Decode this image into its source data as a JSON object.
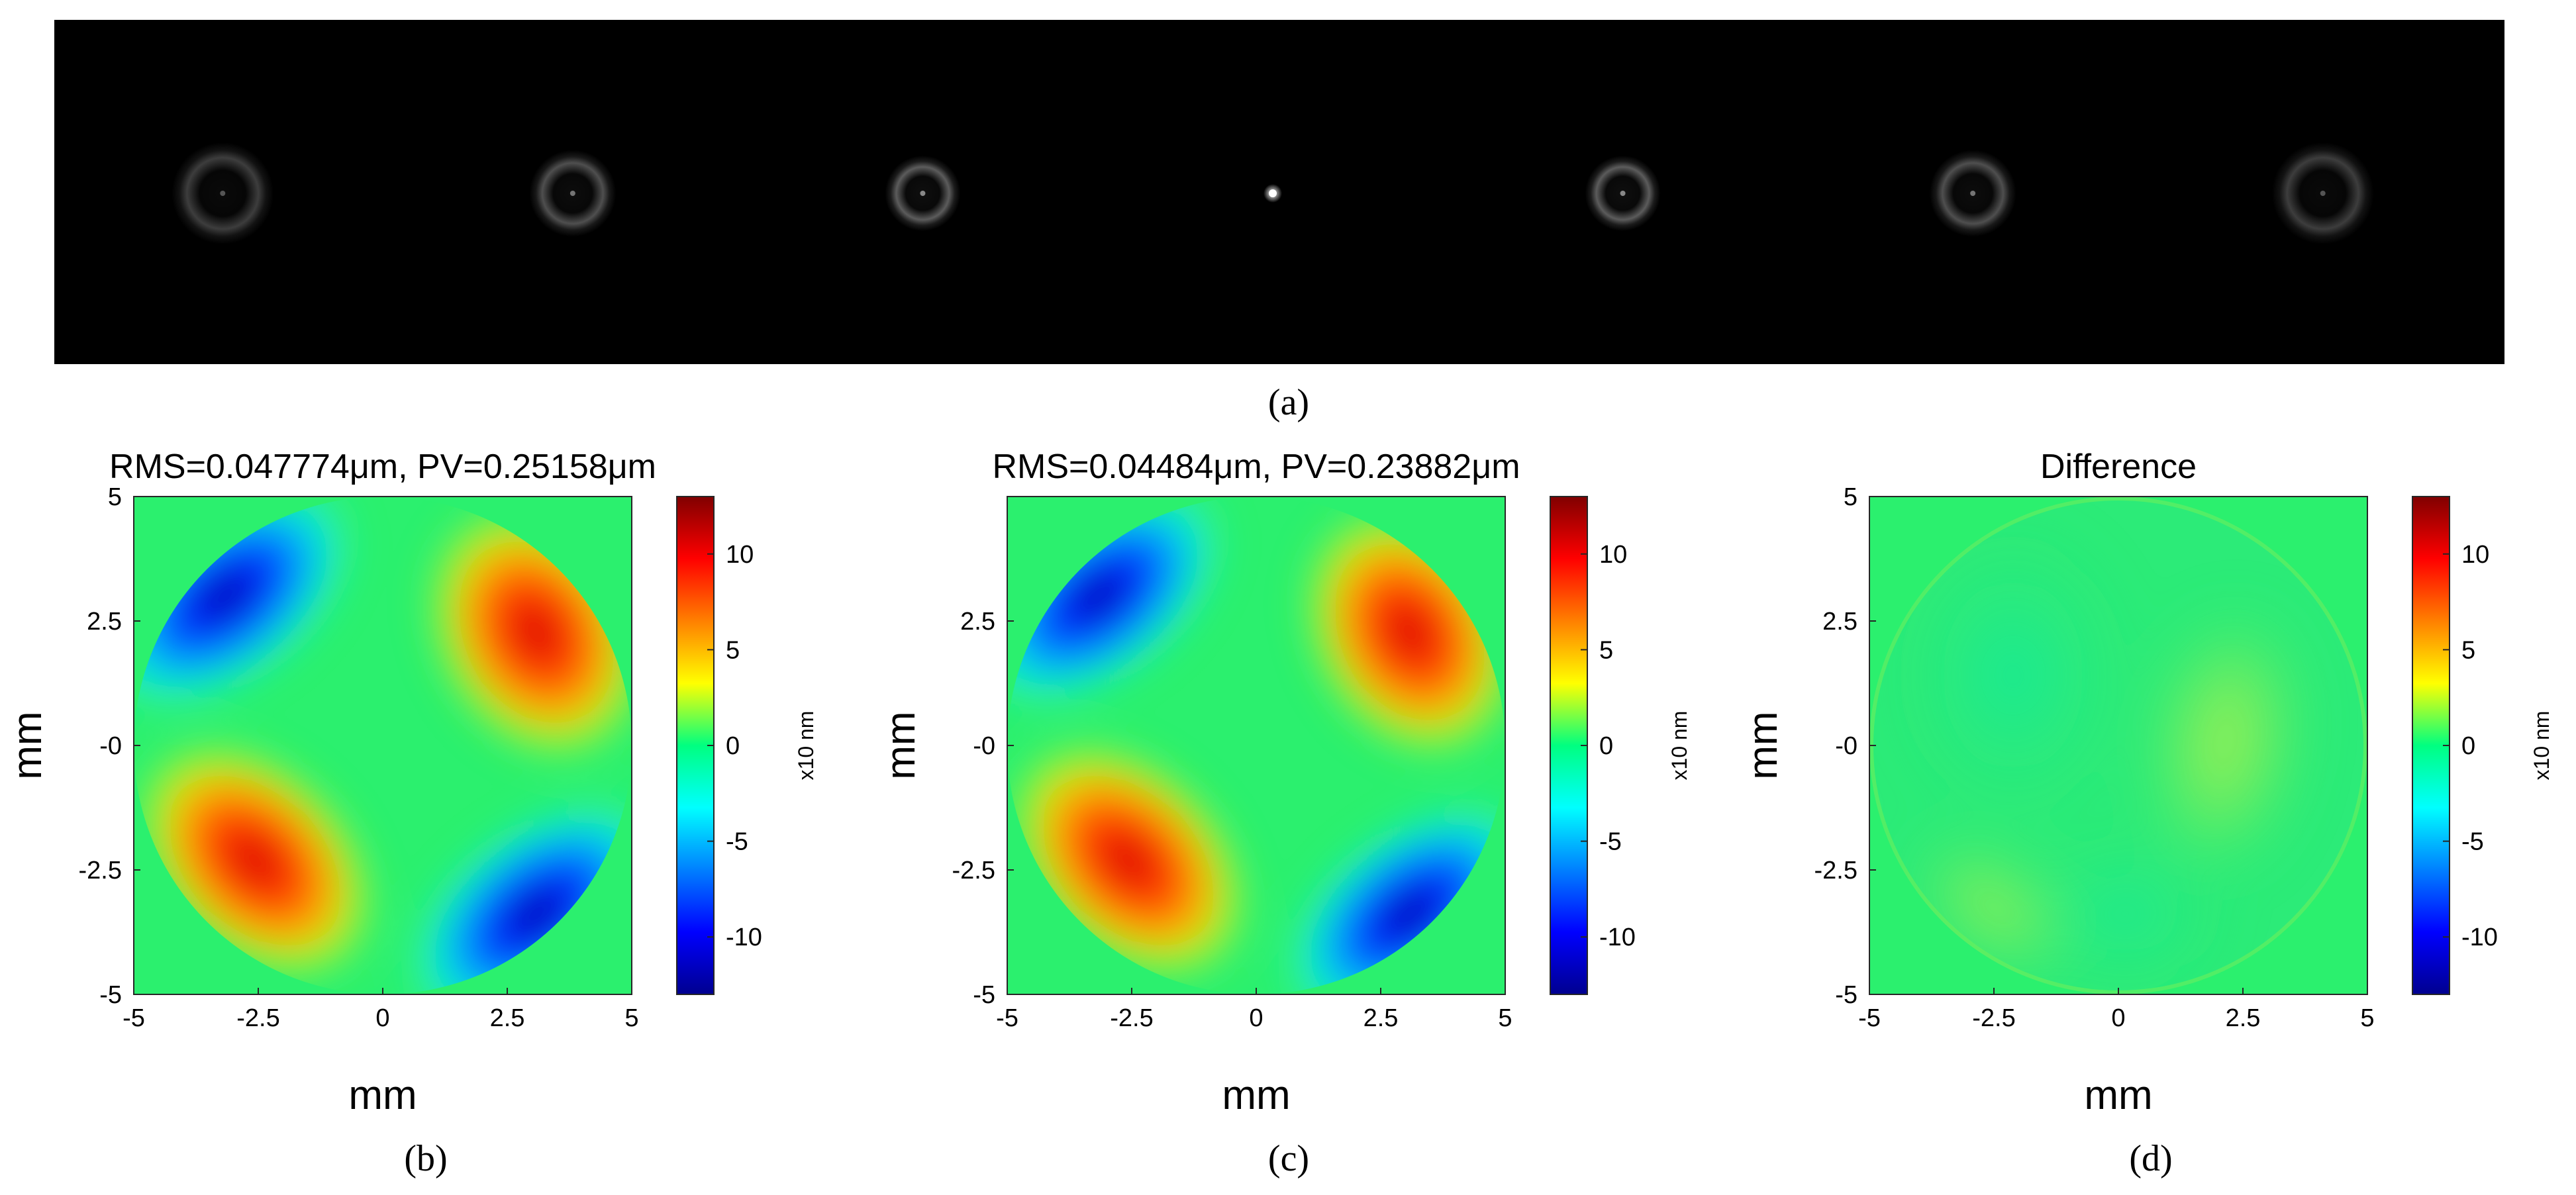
{
  "figure": {
    "panel_labels": [
      "(a)",
      "(b)",
      "(c)",
      "(d)"
    ],
    "panel_a": {
      "type": "focal-spot image series",
      "background": "#000000",
      "spot_count": 7,
      "spot_intensity": [
        0.22,
        0.45,
        0.62,
        1.0,
        0.62,
        0.45,
        0.22
      ]
    },
    "colormap": "jet",
    "colorbar_label": "x10 nm",
    "colorbar_ticks": [
      "10",
      "5",
      "0",
      "-5",
      "-10"
    ],
    "panels": [
      {
        "id": "b",
        "title": "RMS=0.047774μm, PV=0.25158μm",
        "xlabel": "mm",
        "ylabel": "mm",
        "xticks": [
          "-5",
          "-2.5",
          "0",
          "2.5",
          "5"
        ],
        "yticks": [
          "5",
          "2.5",
          "-0",
          "-2.5",
          "-5"
        ],
        "map": "wavefront"
      },
      {
        "id": "c",
        "title": "RMS=0.04484μm, PV=0.23882μm",
        "xlabel": "mm",
        "ylabel": "mm",
        "xticks": [
          "-5",
          "-2.5",
          "0",
          "2.5",
          "5"
        ],
        "yticks": [
          "2.5",
          "-0",
          "-2.5",
          "-5"
        ],
        "map": "wavefront"
      },
      {
        "id": "d",
        "title": "Difference",
        "xlabel": "mm",
        "ylabel": "mm",
        "xticks": [
          "-5",
          "-2.5",
          "0",
          "2.5",
          "5"
        ],
        "yticks": [
          "5",
          "2.5",
          "-0",
          "-2.5",
          "-5"
        ],
        "map": "difference"
      }
    ]
  },
  "chart_data": [
    {
      "type": "heatmap",
      "title": "RMS=0.047774μm, PV=0.25158μm",
      "xlabel": "mm",
      "ylabel": "mm",
      "xlim": [
        -5,
        5
      ],
      "ylim": [
        -5,
        5
      ],
      "colorbar": {
        "label": "x10 nm",
        "range": [
          -13,
          13
        ],
        "ticks": [
          -10,
          -5,
          0,
          5,
          10
        ]
      },
      "rms_um": 0.047774,
      "pv_um": 0.25158
    },
    {
      "type": "heatmap",
      "title": "RMS=0.04484μm, PV=0.23882μm",
      "xlabel": "mm",
      "ylabel": "mm",
      "xlim": [
        -5,
        5
      ],
      "ylim": [
        -5,
        5
      ],
      "colorbar": {
        "label": "x10 nm",
        "range": [
          -13,
          13
        ],
        "ticks": [
          -10,
          -5,
          0,
          5,
          10
        ]
      },
      "rms_um": 0.04484,
      "pv_um": 0.23882
    },
    {
      "type": "heatmap",
      "title": "Difference",
      "xlabel": "mm",
      "ylabel": "mm",
      "xlim": [
        -5,
        5
      ],
      "ylim": [
        -5,
        5
      ],
      "colorbar": {
        "label": "x10 nm",
        "range": [
          -13,
          13
        ],
        "ticks": [
          -10,
          -5,
          0,
          5,
          10
        ]
      }
    }
  ]
}
